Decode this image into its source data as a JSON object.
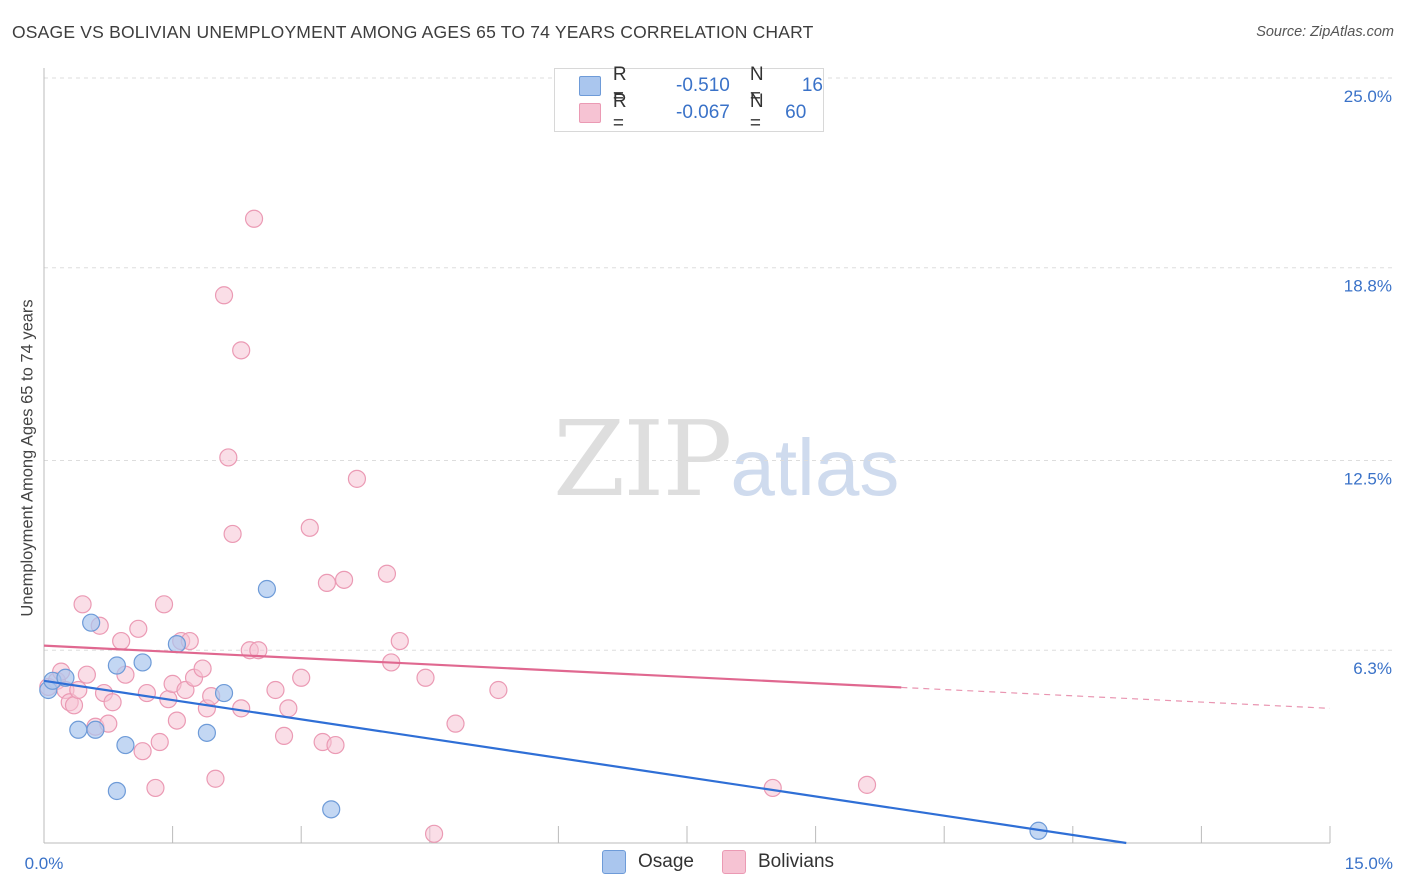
{
  "title": "OSAGE VS BOLIVIAN UNEMPLOYMENT AMONG AGES 65 TO 74 YEARS CORRELATION CHART",
  "source": "Source: ZipAtlas.com",
  "watermark": {
    "zip": "ZIP",
    "atlas": "atlas"
  },
  "legend": {
    "osage": {
      "r_label": "R =",
      "r_value": "-0.510",
      "n_label": "N =",
      "n_value": "16"
    },
    "bolivians": {
      "r_label": "R =",
      "r_value": "-0.067",
      "n_label": "N =",
      "n_value": "60"
    }
  },
  "bottom_legend": {
    "osage": "Osage",
    "bolivians": "Bolivians"
  },
  "colors": {
    "osage_fill": "#aac6ee",
    "osage_stroke": "#6e9bd8",
    "osage_line": "#2f6fd6",
    "bol_fill": "#f6c3d3",
    "bol_stroke": "#eb9ab4",
    "bol_line": "#e06890",
    "tick_label": "#3a72c8",
    "grid": "#dddddd"
  },
  "chart_data": {
    "type": "scatter",
    "title": "OSAGE VS BOLIVIAN UNEMPLOYMENT AMONG AGES 65 TO 74 YEARS CORRELATION CHART",
    "xlabel": "",
    "ylabel": "Unemployment Among Ages 65 to 74 years",
    "xlim": [
      0,
      15
    ],
    "ylim": [
      0,
      25
    ],
    "x_tick_labels": [
      "0.0%",
      "15.0%"
    ],
    "y_ticks": [
      6.3,
      12.5,
      18.8,
      25.0
    ],
    "y_tick_labels": [
      "6.3%",
      "12.5%",
      "18.8%",
      "25.0%"
    ],
    "grid": true,
    "series": [
      {
        "name": "Osage",
        "points": [
          [
            0.05,
            5.0
          ],
          [
            0.1,
            5.3
          ],
          [
            0.25,
            5.4
          ],
          [
            0.4,
            3.7
          ],
          [
            0.55,
            7.2
          ],
          [
            0.6,
            3.7
          ],
          [
            0.85,
            1.7
          ],
          [
            0.95,
            3.2
          ],
          [
            0.85,
            5.8
          ],
          [
            1.15,
            5.9
          ],
          [
            1.55,
            6.5
          ],
          [
            1.9,
            3.6
          ],
          [
            2.1,
            4.9
          ],
          [
            2.6,
            8.3
          ],
          [
            3.35,
            1.1
          ],
          [
            11.6,
            0.4
          ]
        ],
        "trend": {
          "x": [
            0,
            13.1
          ],
          "y": [
            5.3,
            -0.2
          ],
          "dashed_to": 13.1
        }
      },
      {
        "name": "Bolivians",
        "points": [
          [
            0.05,
            5.1
          ],
          [
            0.15,
            5.3
          ],
          [
            0.2,
            5.6
          ],
          [
            0.25,
            5.0
          ],
          [
            0.3,
            4.6
          ],
          [
            0.35,
            4.5
          ],
          [
            0.4,
            5.0
          ],
          [
            0.45,
            7.8
          ],
          [
            0.5,
            5.5
          ],
          [
            0.6,
            3.8
          ],
          [
            0.65,
            7.1
          ],
          [
            0.7,
            4.9
          ],
          [
            0.75,
            3.9
          ],
          [
            0.8,
            4.6
          ],
          [
            0.9,
            6.6
          ],
          [
            0.95,
            5.5
          ],
          [
            1.1,
            7.0
          ],
          [
            1.15,
            3.0
          ],
          [
            1.2,
            4.9
          ],
          [
            1.3,
            1.8
          ],
          [
            1.35,
            3.3
          ],
          [
            1.4,
            7.8
          ],
          [
            1.45,
            4.7
          ],
          [
            1.5,
            5.2
          ],
          [
            1.55,
            4.0
          ],
          [
            1.6,
            6.6
          ],
          [
            1.65,
            5.0
          ],
          [
            1.7,
            6.6
          ],
          [
            1.75,
            5.4
          ],
          [
            1.85,
            5.7
          ],
          [
            1.9,
            4.4
          ],
          [
            1.95,
            4.8
          ],
          [
            2.0,
            2.1
          ],
          [
            2.1,
            17.9
          ],
          [
            2.15,
            12.6
          ],
          [
            2.2,
            10.1
          ],
          [
            2.3,
            4.4
          ],
          [
            2.3,
            16.1
          ],
          [
            2.4,
            6.3
          ],
          [
            2.45,
            20.4
          ],
          [
            2.5,
            6.3
          ],
          [
            2.7,
            5.0
          ],
          [
            2.8,
            3.5
          ],
          [
            2.85,
            4.4
          ],
          [
            3.0,
            5.4
          ],
          [
            3.1,
            10.3
          ],
          [
            3.25,
            3.3
          ],
          [
            3.3,
            8.5
          ],
          [
            3.4,
            3.2
          ],
          [
            3.5,
            8.6
          ],
          [
            3.65,
            11.9
          ],
          [
            4.0,
            8.8
          ],
          [
            4.05,
            5.9
          ],
          [
            4.15,
            6.6
          ],
          [
            4.45,
            5.4
          ],
          [
            4.55,
            0.3
          ],
          [
            4.8,
            3.9
          ],
          [
            5.3,
            5.0
          ],
          [
            8.5,
            1.8
          ],
          [
            9.6,
            1.9
          ]
        ],
        "trend": {
          "x": [
            0,
            15
          ],
          "y": [
            6.45,
            4.4
          ],
          "dashed_from": 10.0
        }
      }
    ]
  }
}
